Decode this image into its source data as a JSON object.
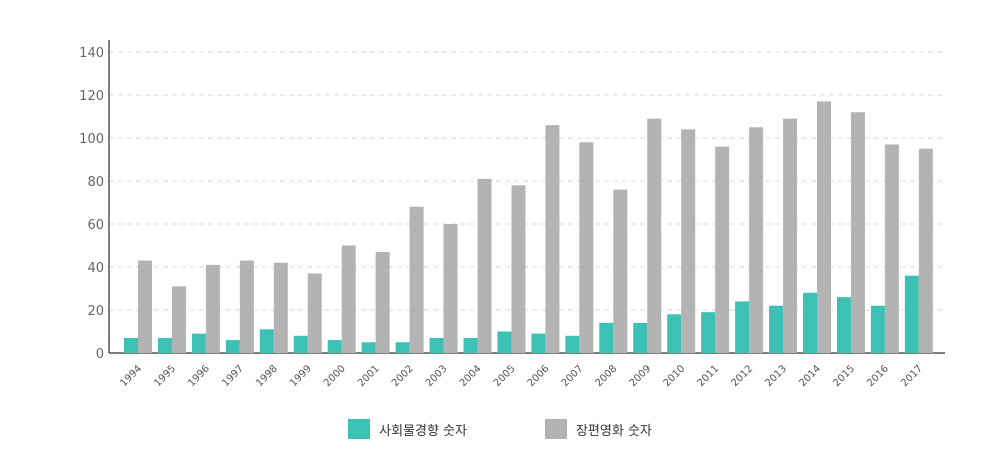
{
  "chart_data": {
    "type": "bar",
    "categories": [
      "1994",
      "1995",
      "1996",
      "1997",
      "1998",
      "1999",
      "2000",
      "2001",
      "2002",
      "2003",
      "2004",
      "2005",
      "2006",
      "2007",
      "2008",
      "2009",
      "2010",
      "2011",
      "2012",
      "2013",
      "2014",
      "2015",
      "2016",
      "2017"
    ],
    "series": [
      {
        "name": "사회물경향 숫자",
        "color": "#3ec1b5",
        "values": [
          7,
          7,
          9,
          6,
          11,
          8,
          6,
          5,
          5,
          7,
          7,
          10,
          9,
          8,
          14,
          14,
          18,
          19,
          24,
          22,
          28,
          26,
          22,
          36
        ]
      },
      {
        "name": "장편영화 숫자",
        "color": "#b3b3b3",
        "values": [
          43,
          31,
          41,
          43,
          42,
          37,
          50,
          47,
          68,
          60,
          81,
          78,
          106,
          98,
          76,
          109,
          104,
          96,
          105,
          109,
          117,
          112,
          97,
          95
        ]
      }
    ],
    "ylim": [
      0,
      140
    ],
    "yticks": [
      0,
      20,
      40,
      60,
      80,
      100,
      120,
      140
    ],
    "grid": true,
    "legend_position": "bottom-center"
  }
}
